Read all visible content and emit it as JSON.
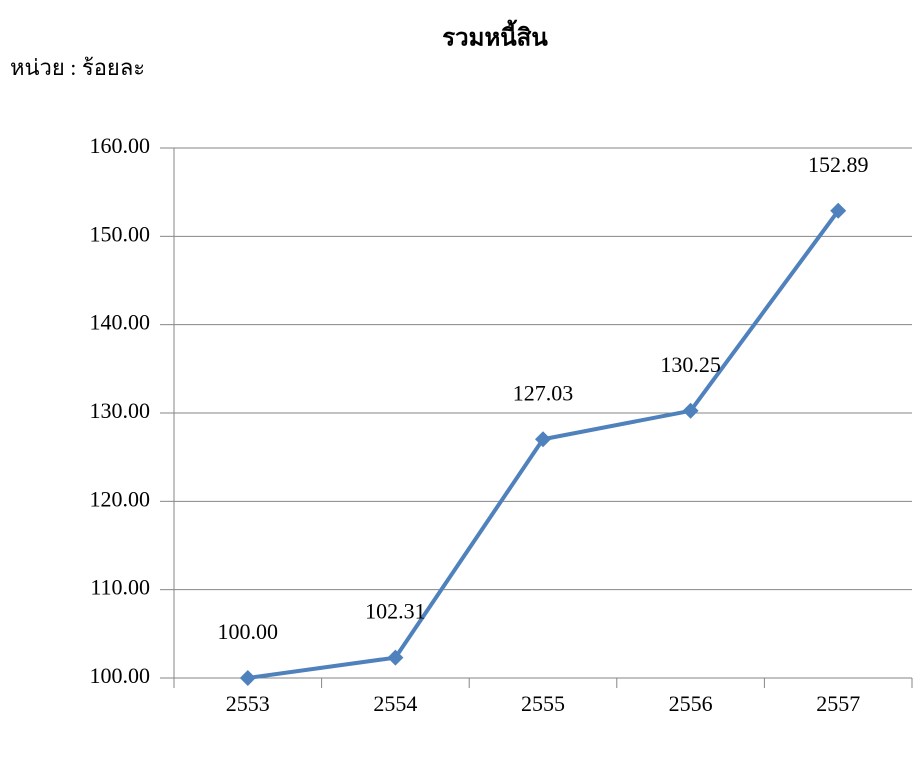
{
  "chart_data": {
    "type": "line",
    "title": "รวมหนี้สิน",
    "subtitle": "หน่วย : ร้อยละ",
    "categories": [
      "2553",
      "2554",
      "2555",
      "2556",
      "2557"
    ],
    "series": [
      {
        "name": "รวมหนี้สิน",
        "color": "#4f81bd",
        "values": [
          100,
          102.31,
          127.03,
          130.25,
          152.89
        ],
        "value_labels": [
          "100.00",
          "102.31",
          "127.03",
          "130.25",
          "152.89"
        ]
      }
    ],
    "ylim": [
      100,
      160
    ],
    "yticks": [
      {
        "value": 100,
        "label": "100.00"
      },
      {
        "value": 110,
        "label": "110.00"
      },
      {
        "value": 120,
        "label": "120.00"
      },
      {
        "value": 130,
        "label": "130.00"
      },
      {
        "value": 140,
        "label": "140.00"
      },
      {
        "value": 150,
        "label": "150.00"
      },
      {
        "value": 160,
        "label": "160.00"
      }
    ],
    "grid": true
  }
}
